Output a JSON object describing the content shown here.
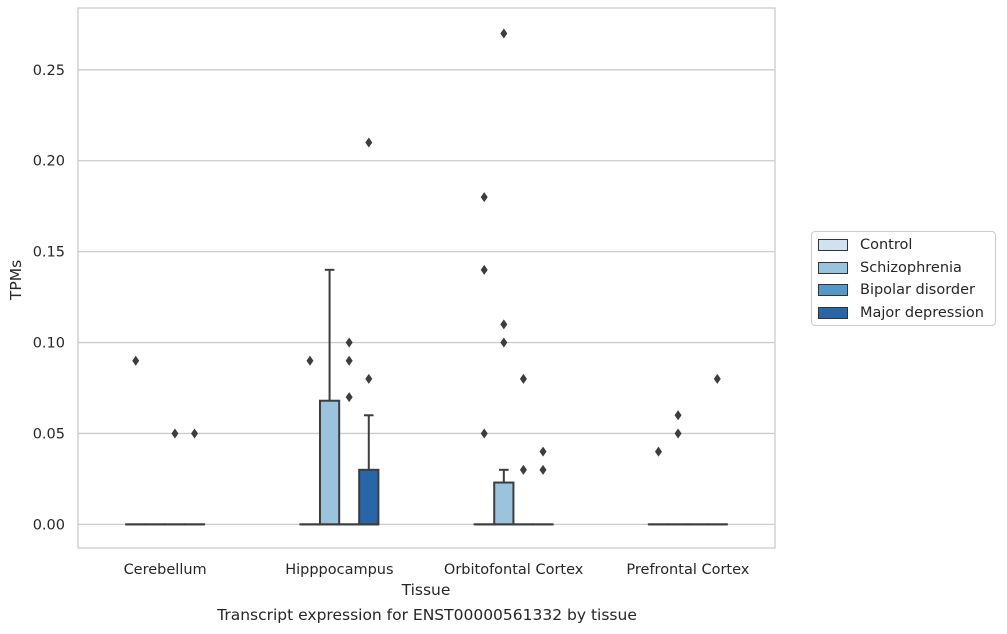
{
  "caption": "Transcript expression for ENST00000561332 by tissue",
  "chart_data": {
    "type": "box",
    "xlabel": "Tissue",
    "ylabel": "TPMs",
    "ylim": [
      -0.013,
      0.284
    ],
    "yticks": [
      "0.00",
      "0.05",
      "0.10",
      "0.15",
      "0.20",
      "0.25"
    ],
    "grid": "horizontal",
    "legend_placement": "right",
    "categories": [
      "Cerebellum",
      "Hipppocampus",
      "Orbitofontal Cortex",
      "Prefrontal Cortex"
    ],
    "series": [
      {
        "name": "Control",
        "color": "#d0e1f2",
        "boxes": [
          {
            "q1": 0,
            "median": 0,
            "q3": 0,
            "whislo": 0,
            "whishi": 0,
            "fliers": [
              0.09
            ]
          },
          {
            "q1": 0,
            "median": 0,
            "q3": 0,
            "whislo": 0,
            "whishi": 0,
            "fliers": [
              0.09
            ]
          },
          {
            "q1": 0,
            "median": 0,
            "q3": 0,
            "whislo": 0,
            "whishi": 0,
            "fliers": [
              0.18,
              0.14,
              0.05
            ]
          },
          {
            "q1": 0,
            "median": 0,
            "q3": 0,
            "whislo": 0,
            "whishi": 0,
            "fliers": [
              0.04
            ]
          }
        ]
      },
      {
        "name": "Schizophrenia",
        "color": "#9ac4de",
        "boxes": [
          {
            "q1": 0,
            "median": 0,
            "q3": 0,
            "whislo": 0,
            "whishi": 0,
            "fliers": []
          },
          {
            "q1": 0,
            "median": 0,
            "q3": 0.068,
            "whislo": 0,
            "whishi": 0.14,
            "fliers": []
          },
          {
            "q1": 0,
            "median": 0,
            "q3": 0.023,
            "whislo": 0,
            "whishi": 0.03,
            "fliers": [
              0.27,
              0.11,
              0.1
            ]
          },
          {
            "q1": 0,
            "median": 0,
            "q3": 0,
            "whislo": 0,
            "whishi": 0,
            "fliers": [
              0.06,
              0.05
            ]
          }
        ]
      },
      {
        "name": "Bipolar disorder",
        "color": "#5597c6",
        "boxes": [
          {
            "q1": 0,
            "median": 0,
            "q3": 0,
            "whislo": 0,
            "whishi": 0,
            "fliers": [
              0.05
            ]
          },
          {
            "q1": 0,
            "median": 0,
            "q3": 0,
            "whislo": 0,
            "whishi": 0,
            "fliers": [
              0.1,
              0.09,
              0.07
            ]
          },
          {
            "q1": 0,
            "median": 0,
            "q3": 0,
            "whislo": 0,
            "whishi": 0,
            "fliers": [
              0.08,
              0.03
            ]
          },
          {
            "q1": 0,
            "median": 0,
            "q3": 0,
            "whislo": 0,
            "whishi": 0,
            "fliers": []
          }
        ]
      },
      {
        "name": "Major depression",
        "color": "#2866a8",
        "boxes": [
          {
            "q1": 0,
            "median": 0,
            "q3": 0,
            "whislo": 0,
            "whishi": 0,
            "fliers": [
              0.05
            ]
          },
          {
            "q1": 0,
            "median": 0,
            "q3": 0.03,
            "whislo": 0,
            "whishi": 0.06,
            "fliers": [
              0.21,
              0.08
            ]
          },
          {
            "q1": 0,
            "median": 0,
            "q3": 0,
            "whislo": 0,
            "whishi": 0,
            "fliers": [
              0.04,
              0.03
            ]
          },
          {
            "q1": 0,
            "median": 0,
            "q3": 0,
            "whislo": 0,
            "whishi": 0,
            "fliers": [
              0.08
            ]
          }
        ]
      }
    ]
  }
}
